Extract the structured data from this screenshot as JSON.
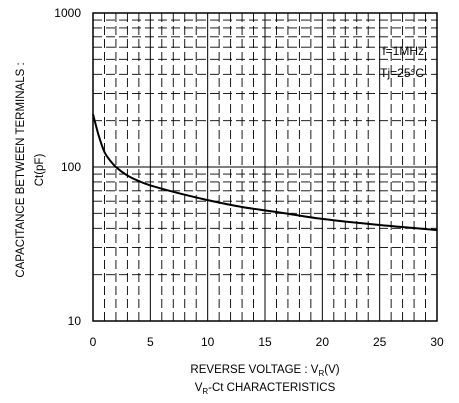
{
  "chart_data": {
    "type": "line",
    "title": "",
    "xlabel_main": "REVERSE VOLTAGE : V",
    "xlabel_sub": "R",
    "xlabel_unit": "(V)",
    "ylabel_line1": "CAPACITANCE BETWEEN TERMINALS :",
    "ylabel_line2": "Ct(pF)",
    "caption_main": "V",
    "caption_sub": "R",
    "caption_rest": "-Ct CHARACTERISTICS",
    "x_scale": "linear",
    "y_scale": "log",
    "xlim": [
      0,
      30
    ],
    "ylim": [
      10,
      1000
    ],
    "x_ticks": [
      0,
      5,
      10,
      15,
      20,
      25,
      30
    ],
    "x_tick_labels": [
      "0",
      "5",
      "10",
      "15",
      "20",
      "25",
      "30"
    ],
    "y_ticks": [
      10,
      100,
      1000
    ],
    "y_tick_labels": [
      "10",
      "100",
      "1000"
    ],
    "grid": true,
    "annotations": [
      "f=1MHz",
      "Tj=25°C"
    ],
    "series": [
      {
        "x": [
          0,
          0.5,
          1,
          1.5,
          2,
          3,
          4,
          5,
          7,
          10,
          13,
          16,
          20,
          25,
          30
        ],
        "y": [
          220,
          160,
          125,
          110,
          100,
          88,
          81,
          76,
          69,
          61,
          55,
          51,
          46,
          42,
          39
        ]
      }
    ]
  }
}
